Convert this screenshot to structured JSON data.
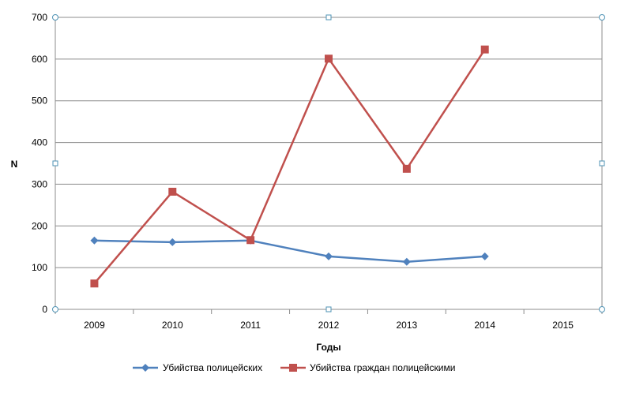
{
  "chart_data": {
    "type": "line",
    "categories": [
      "2009",
      "2010",
      "2011",
      "2012",
      "2013",
      "2014",
      "2015"
    ],
    "series": [
      {
        "name": "Убийства полицейских",
        "color": "#4f81bd",
        "marker": "diamond",
        "values": [
          165,
          161,
          165,
          127,
          114,
          127,
          null
        ]
      },
      {
        "name": "Убийства граждан полицейскими",
        "color": "#c0504d",
        "marker": "square",
        "values": [
          62,
          282,
          166,
          601,
          337,
          623,
          null
        ]
      }
    ],
    "xlabel": "Годы",
    "ylabel": "N",
    "ylim": [
      0,
      700
    ],
    "yticks": [
      "0",
      "100",
      "200",
      "300",
      "400",
      "500",
      "600",
      "700"
    ],
    "grid": "horizontal",
    "legend_position": "bottom"
  }
}
